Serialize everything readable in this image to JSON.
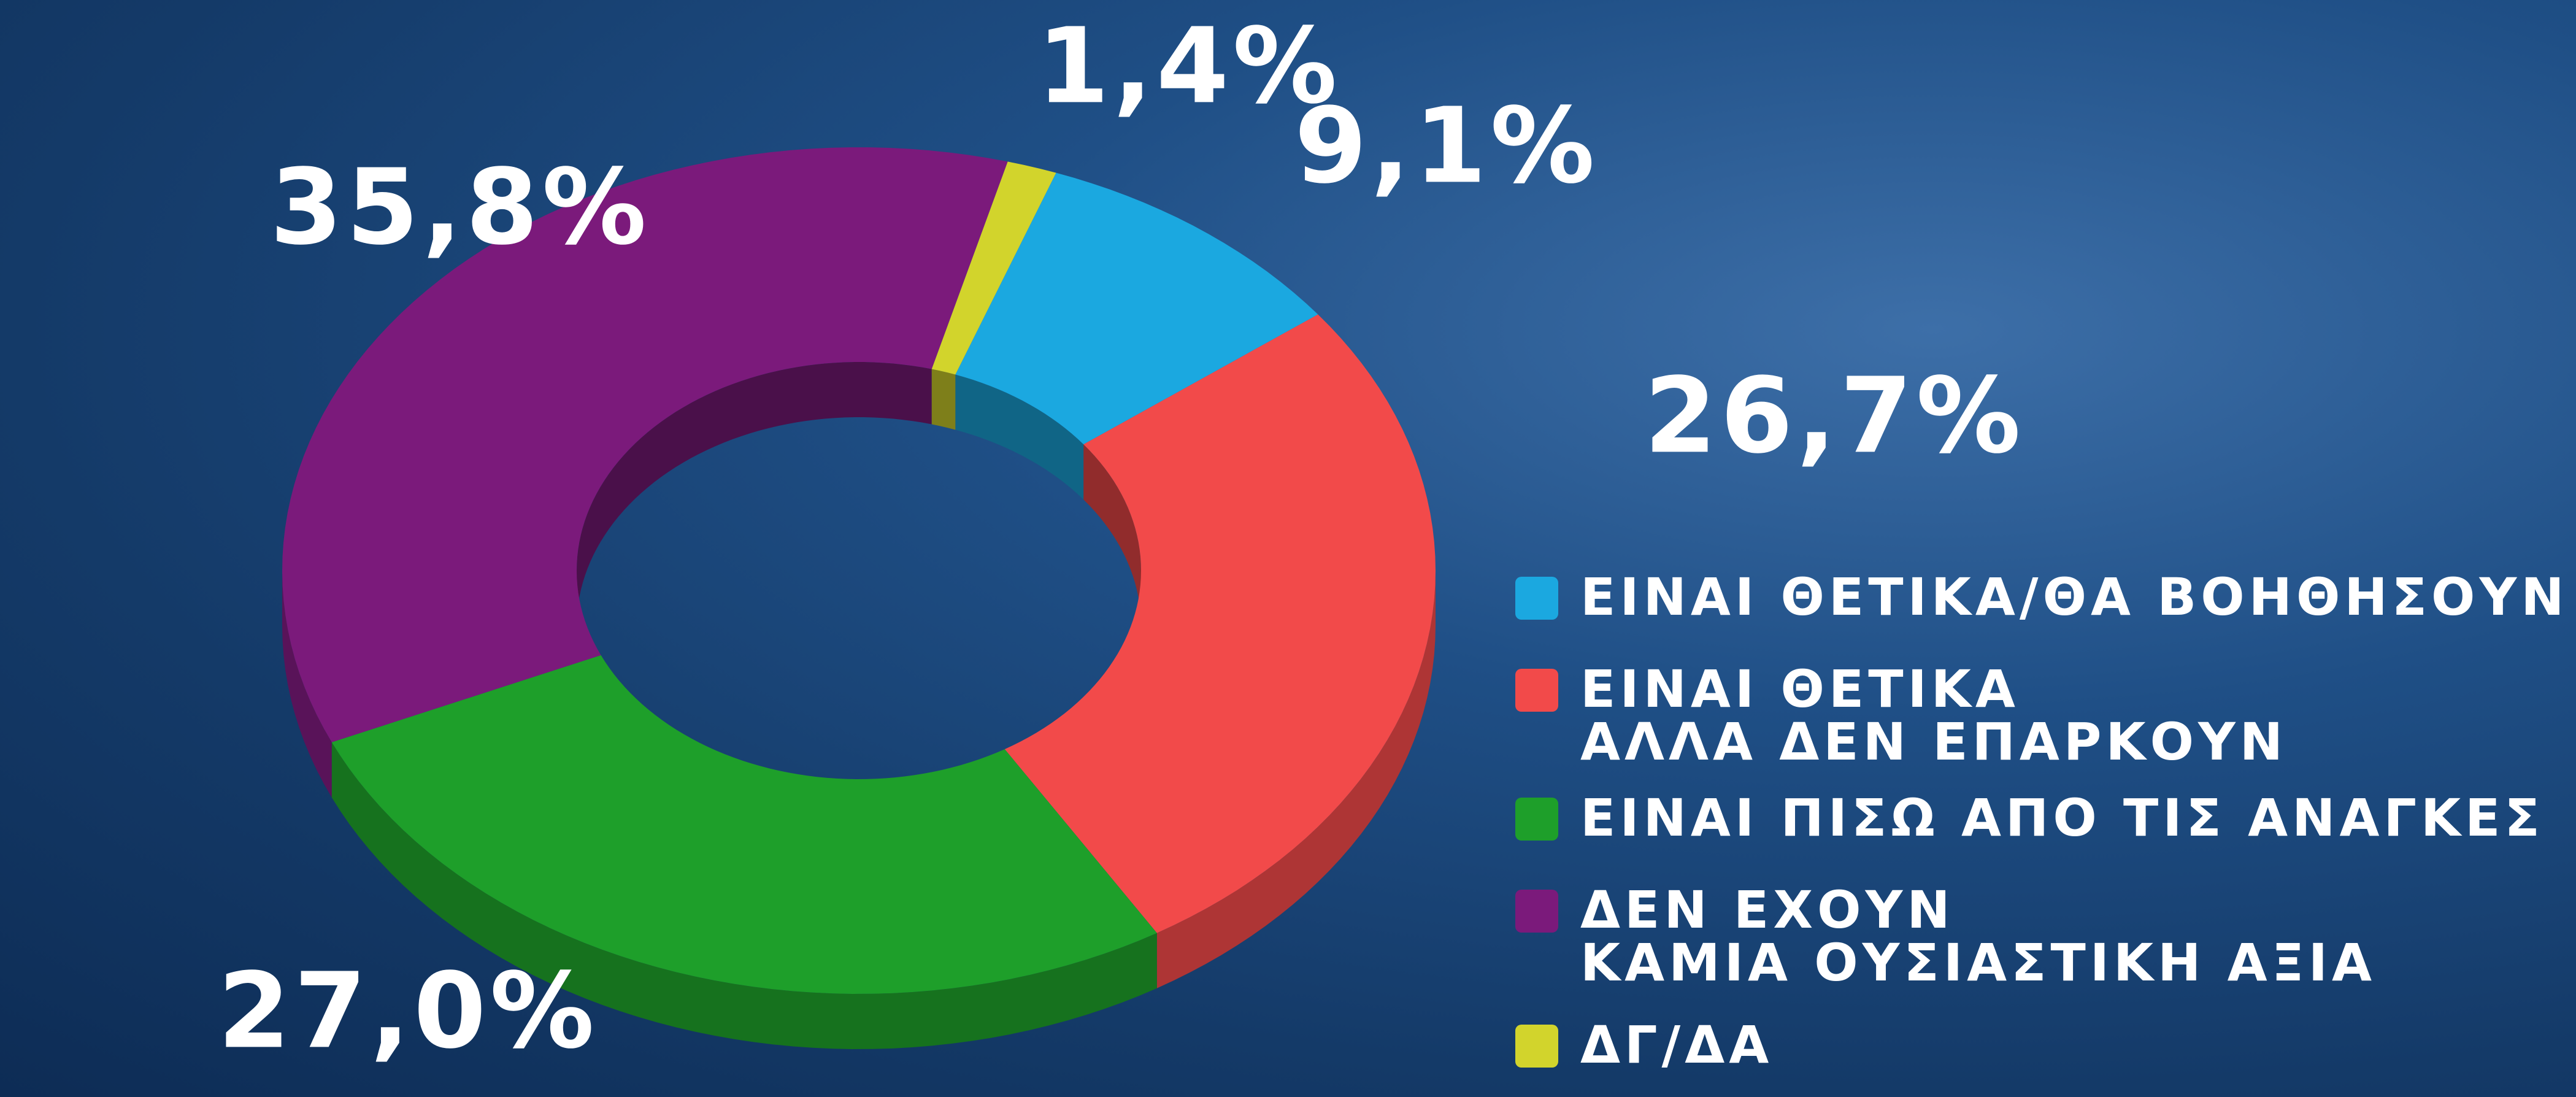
{
  "chart_data": {
    "type": "pie",
    "categories": [
      "ΕΙΝΑΙ ΘΕΤΙΚΑ/ΘΑ ΒΟΗΘΗΣΟΥΝ",
      "ΕΙΝΑΙ ΘΕΤΙΚΑ\nΑΛΛΑ ΔΕΝ ΕΠΑΡΚΟΥΝ",
      "ΕΙΝΑΙ ΠΙΣΩ ΑΠΟ ΤΙΣ ΑΝΑΓΚΕΣ",
      "ΔΕΝ ΕΧΟΥΝ\nΚΑΜΙΑ ΟΥΣΙΑΣΤΙΚΗ ΑΞΙΑ",
      "ΔΓ/ΔΑ"
    ],
    "values": [
      9.1,
      26.7,
      27.0,
      35.8,
      1.4
    ],
    "value_labels": [
      "9,1%",
      "26,7%",
      "27,0%",
      "35,8%",
      "1,4%"
    ],
    "colors": [
      "#1ba8e0",
      "#f24a4a",
      "#1e9f2a",
      "#7b1a7b",
      "#d2d42c"
    ]
  }
}
